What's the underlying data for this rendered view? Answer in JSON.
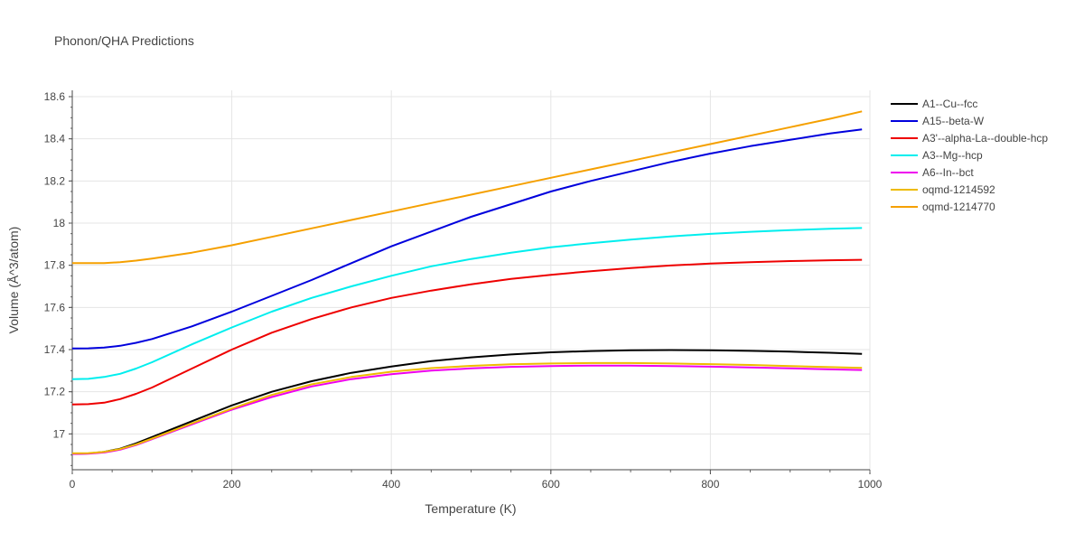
{
  "chart_data": {
    "type": "line",
    "title": "Phonon/QHA Predictions",
    "xlabel": "Temperature (K)",
    "ylabel": "Volume (Å^3/atom)",
    "xlim": [
      0,
      1000
    ],
    "ylim": [
      16.83,
      18.63
    ],
    "x_ticks": [
      "0",
      "200",
      "400",
      "600",
      "800",
      "1000"
    ],
    "y_ticks": [
      "17",
      "17.2",
      "17.4",
      "17.6",
      "17.8",
      "18",
      "18.2",
      "18.4",
      "18.6"
    ],
    "grid": true,
    "legend_position": "right",
    "x": [
      0,
      20,
      40,
      60,
      80,
      100,
      150,
      200,
      250,
      300,
      350,
      400,
      450,
      500,
      550,
      600,
      650,
      700,
      750,
      800,
      850,
      900,
      950,
      990
    ],
    "series": [
      {
        "name": "A1--Cu--fcc",
        "color": "#000000",
        "values": [
          16.905,
          16.907,
          16.915,
          16.93,
          16.955,
          16.985,
          17.06,
          17.135,
          17.2,
          17.25,
          17.29,
          17.32,
          17.345,
          17.363,
          17.377,
          17.387,
          17.393,
          17.397,
          17.398,
          17.397,
          17.394,
          17.39,
          17.385,
          17.38
        ]
      },
      {
        "name": "A15--beta-W",
        "color": "#0000dd",
        "values": [
          17.405,
          17.406,
          17.41,
          17.418,
          17.432,
          17.45,
          17.51,
          17.58,
          17.655,
          17.73,
          17.81,
          17.89,
          17.96,
          18.03,
          18.09,
          18.15,
          18.2,
          18.245,
          18.29,
          18.33,
          18.365,
          18.395,
          18.425,
          18.445
        ]
      },
      {
        "name": "A3'--alpha-La--double-hcp",
        "color": "#ee0000",
        "values": [
          17.14,
          17.141,
          17.148,
          17.165,
          17.19,
          17.22,
          17.31,
          17.4,
          17.48,
          17.545,
          17.6,
          17.645,
          17.68,
          17.71,
          17.735,
          17.755,
          17.772,
          17.787,
          17.799,
          17.808,
          17.815,
          17.82,
          17.824,
          17.826
        ]
      },
      {
        "name": "A3--Mg--hcp",
        "color": "#00eeee",
        "values": [
          17.26,
          17.261,
          17.27,
          17.285,
          17.31,
          17.34,
          17.425,
          17.505,
          17.58,
          17.645,
          17.7,
          17.75,
          17.795,
          17.83,
          17.86,
          17.885,
          17.905,
          17.922,
          17.937,
          17.949,
          17.959,
          17.967,
          17.973,
          17.977
        ]
      },
      {
        "name": "A6--In--bct",
        "color": "#ee00ee",
        "values": [
          16.905,
          16.906,
          16.912,
          16.925,
          16.947,
          16.975,
          17.045,
          17.115,
          17.175,
          17.225,
          17.26,
          17.283,
          17.3,
          17.311,
          17.318,
          17.322,
          17.324,
          17.324,
          17.322,
          17.319,
          17.315,
          17.311,
          17.306,
          17.303
        ]
      },
      {
        "name": "oqmd-1214592",
        "color": "#eebb00",
        "values": [
          16.908,
          16.909,
          16.915,
          16.928,
          16.95,
          16.978,
          17.05,
          17.12,
          17.185,
          17.235,
          17.27,
          17.295,
          17.312,
          17.323,
          17.33,
          17.334,
          17.336,
          17.336,
          17.334,
          17.331,
          17.327,
          17.322,
          17.317,
          17.313
        ]
      },
      {
        "name": "oqmd-1214770",
        "color": "#f5a000",
        "values": [
          17.81,
          17.81,
          17.81,
          17.815,
          17.822,
          17.832,
          17.86,
          17.895,
          17.935,
          17.975,
          18.015,
          18.055,
          18.095,
          18.135,
          18.175,
          18.215,
          18.255,
          18.295,
          18.335,
          18.375,
          18.415,
          18.455,
          18.495,
          18.53
        ]
      }
    ]
  }
}
